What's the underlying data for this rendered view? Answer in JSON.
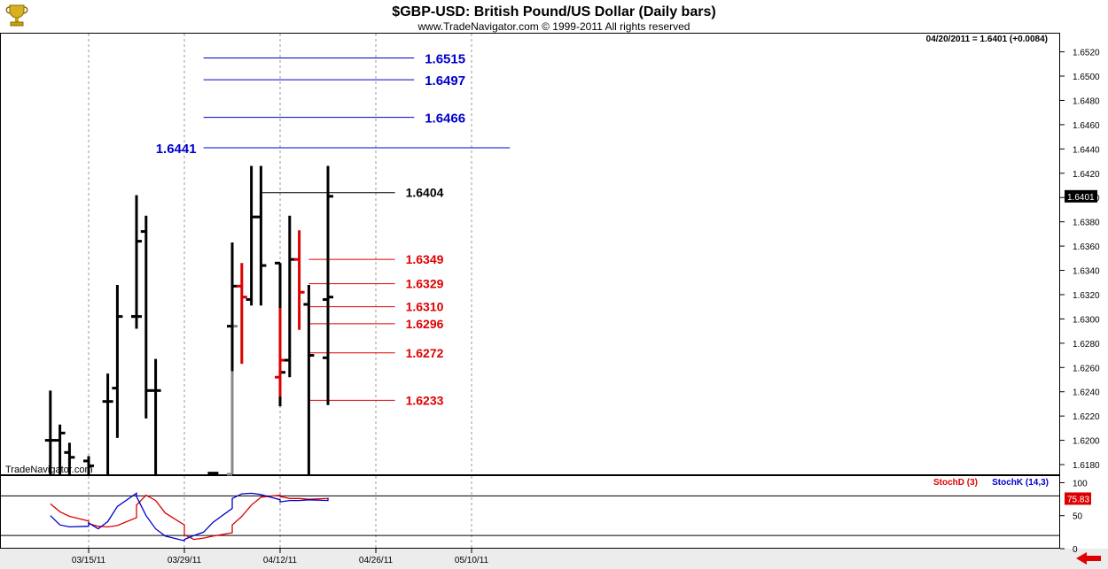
{
  "header": {
    "title": "$GBP-USD:  British Pound/US Dollar  (Daily bars)",
    "subtitle": "www.TradeNavigator.com © 1999-2011 All rights reserved",
    "quote": "04/20/2011 = 1.6401 (+0.0084)",
    "watermark": "TradeNavigator.com",
    "logo_icon": "trophy-icon"
  },
  "colors": {
    "up": "#000000",
    "down_highlight": "#dd0000",
    "blue_level": "#0000cc",
    "red_level": "#dd0000",
    "black_level": "#000000",
    "stoch_d": "#dd0000",
    "stoch_k": "#0000cc"
  },
  "chart_data": [
    {
      "type": "ohlc",
      "title": "$GBP-USD:  British Pound/US Dollar  (Daily bars)",
      "x_ticks": [
        "03/15/11",
        "03/29/11",
        "04/12/11",
        "04/26/11",
        "05/10/11"
      ],
      "y_ticks": [
        "1.6520",
        "1.6500",
        "1.6480",
        "1.6460",
        "1.6440",
        "1.6420",
        "1.6400",
        "1.6380",
        "1.6360",
        "1.6340",
        "1.6320",
        "1.6300",
        "1.6280",
        "1.6260",
        "1.6240",
        "1.6220",
        "1.6200",
        "1.6180"
      ],
      "ylim": [
        1.6172,
        1.6535
      ],
      "last_price_label": "1.6401",
      "bars": [
        {
          "date": "03/09/11",
          "open": 1.62,
          "high": 1.6241,
          "low": 1.6172,
          "close": 1.62,
          "color": "black"
        },
        {
          "date": "03/10/11",
          "open": 1.62,
          "high": 1.6213,
          "low": 1.6172,
          "close": 1.6206,
          "color": "black"
        },
        {
          "date": "03/11/11",
          "open": 1.619,
          "high": 1.6198,
          "low": 1.6172,
          "close": 1.6186,
          "color": "black"
        },
        {
          "date": "03/14/11",
          "open": 1.6183,
          "high": 1.6187,
          "low": 1.6172,
          "close": 1.6179,
          "color": "black"
        },
        {
          "date": "03/17/11",
          "open": 1.6232,
          "high": 1.6255,
          "low": 1.6172,
          "close": 1.6232,
          "color": "black"
        },
        {
          "date": "03/18/11",
          "open": 1.6243,
          "high": 1.6328,
          "low": 1.6202,
          "close": 1.6302,
          "color": "black"
        },
        {
          "date": "03/21/11",
          "open": 1.6302,
          "high": 1.6352,
          "low": 1.6292,
          "close": 1.6302,
          "color": "black"
        },
        {
          "date": "03/22/11",
          "open": 1.6302,
          "high": 1.6402,
          "low": 1.6292,
          "close": 1.6364,
          "color": "black"
        },
        {
          "date": "03/23/11",
          "open": 1.6372,
          "high": 1.6385,
          "low": 1.6218,
          "close": 1.6241,
          "color": "black"
        },
        {
          "date": "03/24/11",
          "open": 1.6241,
          "high": 1.6267,
          "low": 1.6172,
          "close": 1.6241,
          "color": "black"
        },
        {
          "date": "04/01/11",
          "open": 1.6173,
          "high": 1.6173,
          "low": 1.6172,
          "close": 1.6173,
          "color": "black"
        },
        {
          "date": "04/04/11",
          "open": 1.6172,
          "high": 1.6299,
          "low": 1.6172,
          "close": 1.6294,
          "color": "gray"
        },
        {
          "date": "04/05/11",
          "open": 1.6294,
          "high": 1.6363,
          "low": 1.6257,
          "close": 1.6327,
          "color": "black"
        },
        {
          "date": "04/06/11",
          "open": 1.6327,
          "high": 1.6346,
          "low": 1.6263,
          "close": 1.6318,
          "color": "red"
        },
        {
          "date": "04/07/11",
          "open": 1.6316,
          "high": 1.6426,
          "low": 1.6311,
          "close": 1.6384,
          "color": "black"
        },
        {
          "date": "04/08/11",
          "open": 1.6384,
          "high": 1.6426,
          "low": 1.6311,
          "close": 1.6344,
          "color": "black"
        },
        {
          "date": "04/11/11",
          "open": 1.6346,
          "high": 1.6346,
          "low": 1.6228,
          "close": 1.6256,
          "color": "black"
        },
        {
          "date": "04/12/11",
          "open": 1.6252,
          "high": 1.6309,
          "low": 1.6236,
          "close": 1.6266,
          "color": "red"
        },
        {
          "date": "04/13/11",
          "open": 1.6266,
          "high": 1.6385,
          "low": 1.6252,
          "close": 1.6349,
          "color": "black"
        },
        {
          "date": "04/14/11",
          "open": 1.6349,
          "high": 1.6373,
          "low": 1.6291,
          "close": 1.6322,
          "color": "red"
        },
        {
          "date": "04/15/11",
          "open": 1.6312,
          "high": 1.6328,
          "low": 1.6172,
          "close": 1.627,
          "color": "black"
        },
        {
          "date": "04/18/11",
          "open": 1.6268,
          "high": 1.6336,
          "low": 1.6229,
          "close": 1.6318,
          "color": "black"
        },
        {
          "date": "04/19/11",
          "open": 1.6316,
          "high": 1.6426,
          "low": 1.6307,
          "close": 1.6401,
          "color": "black"
        }
      ],
      "levels": [
        {
          "value": 1.6515,
          "label": "1.6515",
          "color": "blue",
          "from": "03/31/11",
          "to": "04/30/11",
          "label_side": "right"
        },
        {
          "value": 1.6497,
          "label": "1.6497",
          "color": "blue",
          "from": "03/31/11",
          "to": "04/30/11",
          "label_side": "right"
        },
        {
          "value": 1.6466,
          "label": "1.6466",
          "color": "blue",
          "from": "03/31/11",
          "to": "04/30/11",
          "label_side": "right"
        },
        {
          "value": 1.6441,
          "label": "1.6441",
          "color": "blue",
          "from": "03/31/11",
          "to": "05/14/11",
          "label_side": "left"
        },
        {
          "value": 1.6404,
          "label": "1.6404",
          "color": "black",
          "from": "04/08/11",
          "to": "04/28/11",
          "label_side": "right"
        },
        {
          "value": 1.6349,
          "label": "1.6349",
          "color": "red",
          "from": "04/15/11",
          "to": "04/28/11",
          "label_side": "right"
        },
        {
          "value": 1.6329,
          "label": "1.6329",
          "color": "red",
          "from": "04/15/11",
          "to": "04/28/11",
          "label_side": "right"
        },
        {
          "value": 1.631,
          "label": "1.6310",
          "color": "red",
          "from": "04/15/11",
          "to": "04/28/11",
          "label_side": "right"
        },
        {
          "value": 1.6296,
          "label": "1.6296",
          "color": "red",
          "from": "04/15/11",
          "to": "04/28/11",
          "label_side": "right"
        },
        {
          "value": 1.6272,
          "label": "1.6272",
          "color": "red",
          "from": "04/15/11",
          "to": "04/28/11",
          "label_side": "right"
        },
        {
          "value": 1.6233,
          "label": "1.6233",
          "color": "red",
          "from": "04/15/11",
          "to": "04/28/11",
          "label_side": "right"
        }
      ]
    },
    {
      "type": "line",
      "legend": [
        "StochD (3)",
        "StochK (14,3)"
      ],
      "y_ticks": [
        "100",
        "50",
        "0"
      ],
      "ylim": [
        0,
        110
      ],
      "reference_lines": [
        80,
        20
      ],
      "last_value_label": "75.83",
      "series": [
        {
          "name": "StochD (3)",
          "color": "red",
          "x": [
            "03/09/11",
            "03/10/11",
            "03/11/11",
            "03/14/11",
            "03/15/11",
            "03/16/11",
            "03/17/11",
            "03/18/11",
            "03/21/11",
            "03/22/11",
            "03/23/11",
            "03/24/11",
            "03/25/11",
            "03/28/11",
            "03/29/11",
            "03/30/11",
            "03/31/11",
            "04/01/11",
            "04/04/11",
            "04/05/11",
            "04/06/11",
            "04/07/11",
            "04/08/11",
            "04/11/11",
            "04/12/11",
            "04/13/11",
            "04/14/11",
            "04/15/11",
            "04/18/11",
            "04/19/11"
          ],
          "y": [
            68,
            56,
            49,
            42,
            38,
            34,
            33,
            35,
            47,
            66,
            81,
            73,
            54,
            36,
            21,
            14,
            16,
            19,
            24,
            36,
            49,
            66,
            78,
            81,
            79,
            76,
            76,
            75,
            76,
            77
          ]
        },
        {
          "name": "StochK (14,3)",
          "color": "blue",
          "x": [
            "03/09/11",
            "03/10/11",
            "03/11/11",
            "03/14/11",
            "03/15/11",
            "03/16/11",
            "03/17/11",
            "03/18/11",
            "03/21/11",
            "03/22/11",
            "03/23/11",
            "03/24/11",
            "03/25/11",
            "03/28/11",
            "03/29/11",
            "03/30/11",
            "03/31/11",
            "04/01/11",
            "04/04/11",
            "04/05/11",
            "04/06/11",
            "04/07/11",
            "04/08/11",
            "04/11/11",
            "04/12/11",
            "04/13/11",
            "04/14/11",
            "04/15/11",
            "04/18/11",
            "04/19/11"
          ],
          "y": [
            50,
            36,
            33,
            34,
            39,
            30,
            41,
            64,
            84,
            79,
            50,
            30,
            19,
            12,
            14,
            20,
            25,
            40,
            61,
            76,
            83,
            84,
            82,
            74,
            71,
            73,
            73,
            74,
            73,
            77
          ]
        }
      ]
    }
  ]
}
